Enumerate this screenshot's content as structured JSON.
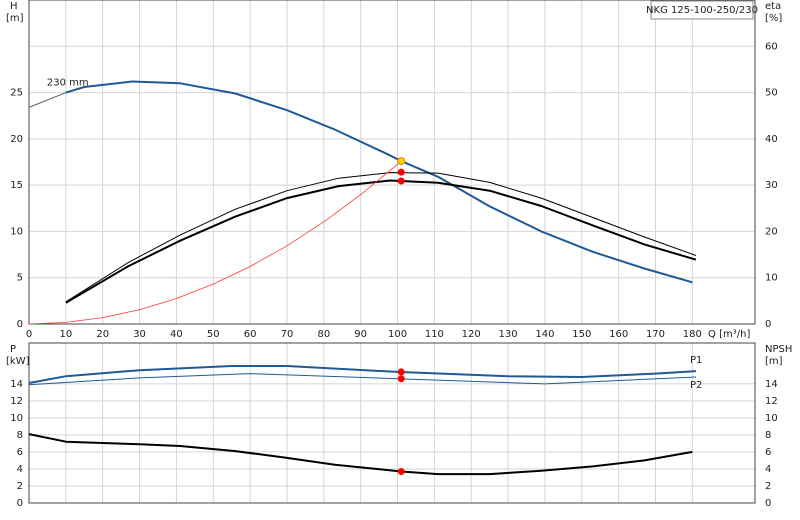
{
  "chart_data": [
    {
      "type": "line",
      "title": "NKG 125-100-250/230",
      "x_label": "Q [m³/h]",
      "y_label": "H",
      "y_unit": "[m]",
      "y2_label": "eta",
      "y2_unit": "[%]",
      "xlim": [
        0,
        197
      ],
      "xticks": [
        0,
        10,
        20,
        30,
        40,
        50,
        60,
        70,
        80,
        90,
        100,
        110,
        120,
        130,
        140,
        150,
        160,
        170,
        180
      ],
      "ylim": [
        0,
        35
      ],
      "yticks": [
        0,
        5,
        10,
        15,
        20,
        25
      ],
      "y2lim": [
        0,
        70
      ],
      "y2ticks": [
        0,
        10,
        20,
        30,
        40,
        50,
        60
      ],
      "grid": true,
      "series": [
        {
          "color": "#666666",
          "width": 1,
          "axis": "y",
          "x": [
            0,
            10
          ],
          "values": [
            23.4,
            25
          ]
        },
        {
          "name": "230 mm",
          "color": "#1f5a96",
          "width": 2,
          "axis": "y",
          "x": [
            10,
            15,
            28,
            41,
            56,
            70,
            83,
            97,
            101,
            111,
            125,
            139,
            153,
            167,
            180
          ],
          "values": [
            25,
            25.6,
            26.2,
            26,
            24.9,
            23.1,
            21,
            18.4,
            17.6,
            15.9,
            12.7,
            10,
            7.8,
            6,
            4.5
          ]
        },
        {
          "color": "#000000",
          "width": 1,
          "axis": "y2",
          "x": [
            10,
            27,
            41,
            56,
            70,
            84,
            98,
            111,
            125,
            139,
            153,
            167,
            181
          ],
          "values": [
            4.8,
            13.3,
            19.2,
            24.8,
            28.8,
            31.5,
            32.7,
            32.6,
            30.6,
            27.2,
            23,
            18.8,
            14.8
          ]
        },
        {
          "color": "#000000",
          "width": 2,
          "axis": "y2",
          "x": [
            10,
            27,
            41,
            56,
            70,
            84,
            98,
            111,
            125,
            139,
            153,
            167,
            181
          ],
          "values": [
            4.6,
            12.5,
            18,
            23.2,
            27.2,
            29.8,
            31,
            30.5,
            28.8,
            25.5,
            21.3,
            17.2,
            13.9
          ]
        },
        {
          "color": "#ff3b30",
          "width": 0.8,
          "axis": "y",
          "x": [
            0,
            10,
            20,
            30,
            40,
            50,
            60,
            70,
            80,
            90,
            100,
            101
          ],
          "values": [
            0,
            0.17,
            0.69,
            1.55,
            2.76,
            4.31,
            6.21,
            8.45,
            11.04,
            13.97,
            17.25,
            17.6
          ]
        },
        {
          "marker": "dot",
          "color": "#ff0000",
          "axis": "y",
          "x": [
            101,
            101
          ],
          "values": [
            16.4,
            15.45
          ]
        },
        {
          "marker": "dot",
          "color": "#ffd700",
          "axis": "y",
          "x": [
            101
          ],
          "values": [
            17.6
          ]
        }
      ]
    },
    {
      "type": "line",
      "y_label": "P",
      "y_unit": "[kW]",
      "y2_label": "NPSH",
      "y2_unit": "[m]",
      "xlim": [
        0,
        197
      ],
      "ylim": [
        0,
        18.8
      ],
      "yticks": [
        0,
        2,
        4,
        6,
        8,
        10,
        12,
        14
      ],
      "y2lim": [
        0,
        18.8
      ],
      "y2ticks": [
        0,
        2,
        4,
        6,
        8,
        10,
        12,
        14
      ],
      "grid": true,
      "series": [
        {
          "name": "P1",
          "color": "#1f5a96",
          "width": 2,
          "axis": "y",
          "x": [
            0,
            10,
            30,
            55,
            70,
            100,
            130,
            150,
            170,
            181
          ],
          "values": [
            14.1,
            14.9,
            15.6,
            16.1,
            16.1,
            15.4,
            14.9,
            14.8,
            15.2,
            15.5
          ]
        },
        {
          "name": "P2",
          "color": "#1f5a96",
          "width": 1,
          "axis": "y",
          "x": [
            0,
            30,
            60,
            100,
            140,
            181
          ],
          "values": [
            13.9,
            14.7,
            15.2,
            14.6,
            14,
            14.8
          ]
        },
        {
          "color": "#000000",
          "width": 2,
          "axis": "y2",
          "x": [
            0,
            10,
            30,
            41,
            56,
            70,
            83,
            101,
            111,
            125,
            139,
            153,
            167,
            180
          ],
          "values": [
            8.1,
            7.2,
            6.9,
            6.7,
            6.1,
            5.3,
            4.5,
            3.7,
            3.4,
            3.4,
            3.8,
            4.3,
            5,
            6
          ]
        },
        {
          "marker": "dot",
          "color": "#ff0000",
          "axis": "y",
          "x": [
            101,
            101
          ],
          "values": [
            15.4,
            14.6
          ]
        },
        {
          "marker": "dot",
          "color": "#ff0000",
          "axis": "y2",
          "x": [
            101
          ],
          "values": [
            3.7
          ]
        }
      ]
    }
  ]
}
